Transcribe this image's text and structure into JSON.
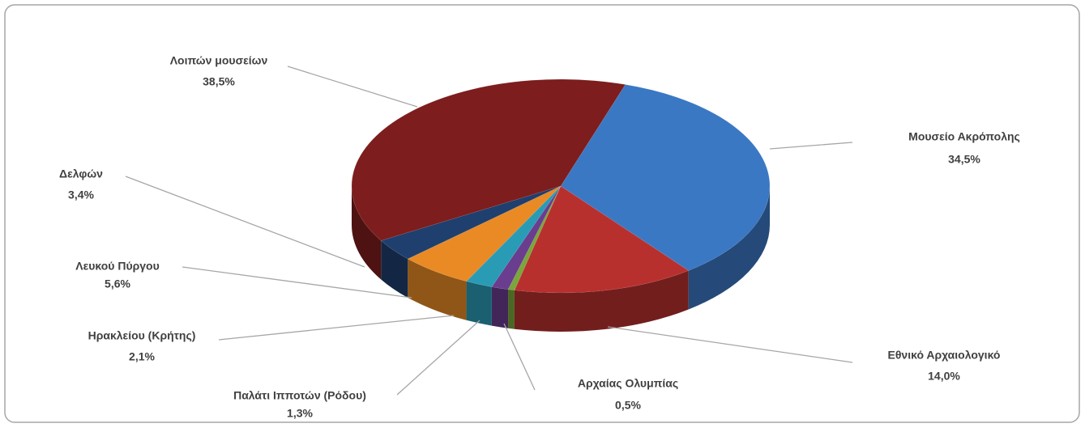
{
  "chart_data": {
    "type": "pie3d",
    "categories": [
      "Μουσείο Ακρόπολης",
      "Εθνικό Αρχαιολογικό",
      "Αρχαίας Ολυμπίας",
      "Παλάτι Ιπποτών (Ρόδου)",
      "Ηρακλείου (Κρήτης)",
      "Λευκού Πύργου",
      "Δελφών",
      "Λοιπών μουσείων"
    ],
    "values": [
      34.5,
      14.0,
      0.5,
      1.3,
      2.1,
      5.6,
      3.4,
      38.5
    ],
    "value_labels": [
      "34,5%",
      "14,0%",
      "0,5%",
      "1,3%",
      "2,1%",
      "5,6%",
      "3,4%",
      "38,5%"
    ],
    "colors": [
      "#3b78c3",
      "#b8302e",
      "#7aa63a",
      "#6a3d8f",
      "#2a9bb5",
      "#e98a25",
      "#1f3f6e",
      "#7d1d1d"
    ]
  }
}
